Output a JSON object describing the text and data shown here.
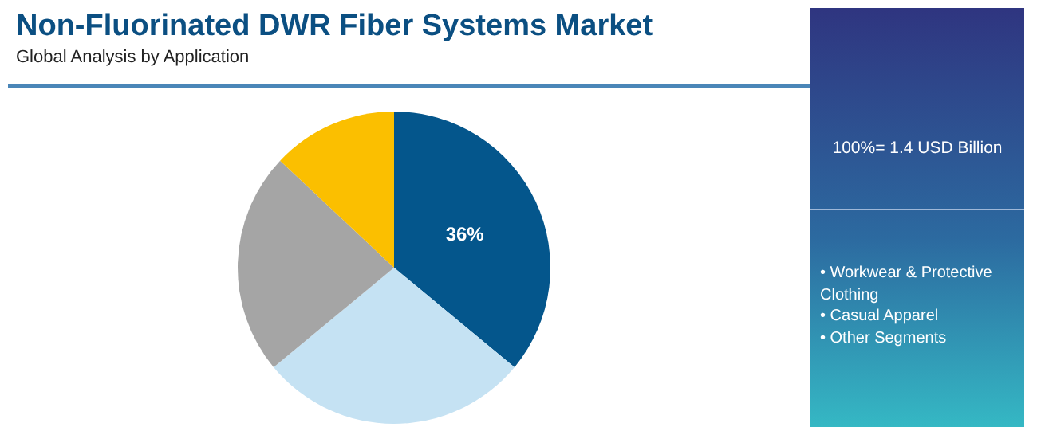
{
  "chart_data": {
    "type": "pie",
    "title": "Non-Fluorinated DWR Fiber Systems Market",
    "subtitle": "Global Analysis by Application",
    "categories": [
      null,
      null,
      null,
      null
    ],
    "values": [
      36,
      28,
      23,
      13
    ],
    "colors": [
      "#04568c",
      "#c5e2f3",
      "#a5a5a5",
      "#fbbf00"
    ],
    "value_labels": [
      "36%",
      null,
      null,
      null
    ],
    "legend": false,
    "annotations": [
      "100%= 1.4 USD Billion",
      "• Workwear & Protective Clothing",
      "• Casual Apparel",
      "• Other Segments"
    ]
  }
}
